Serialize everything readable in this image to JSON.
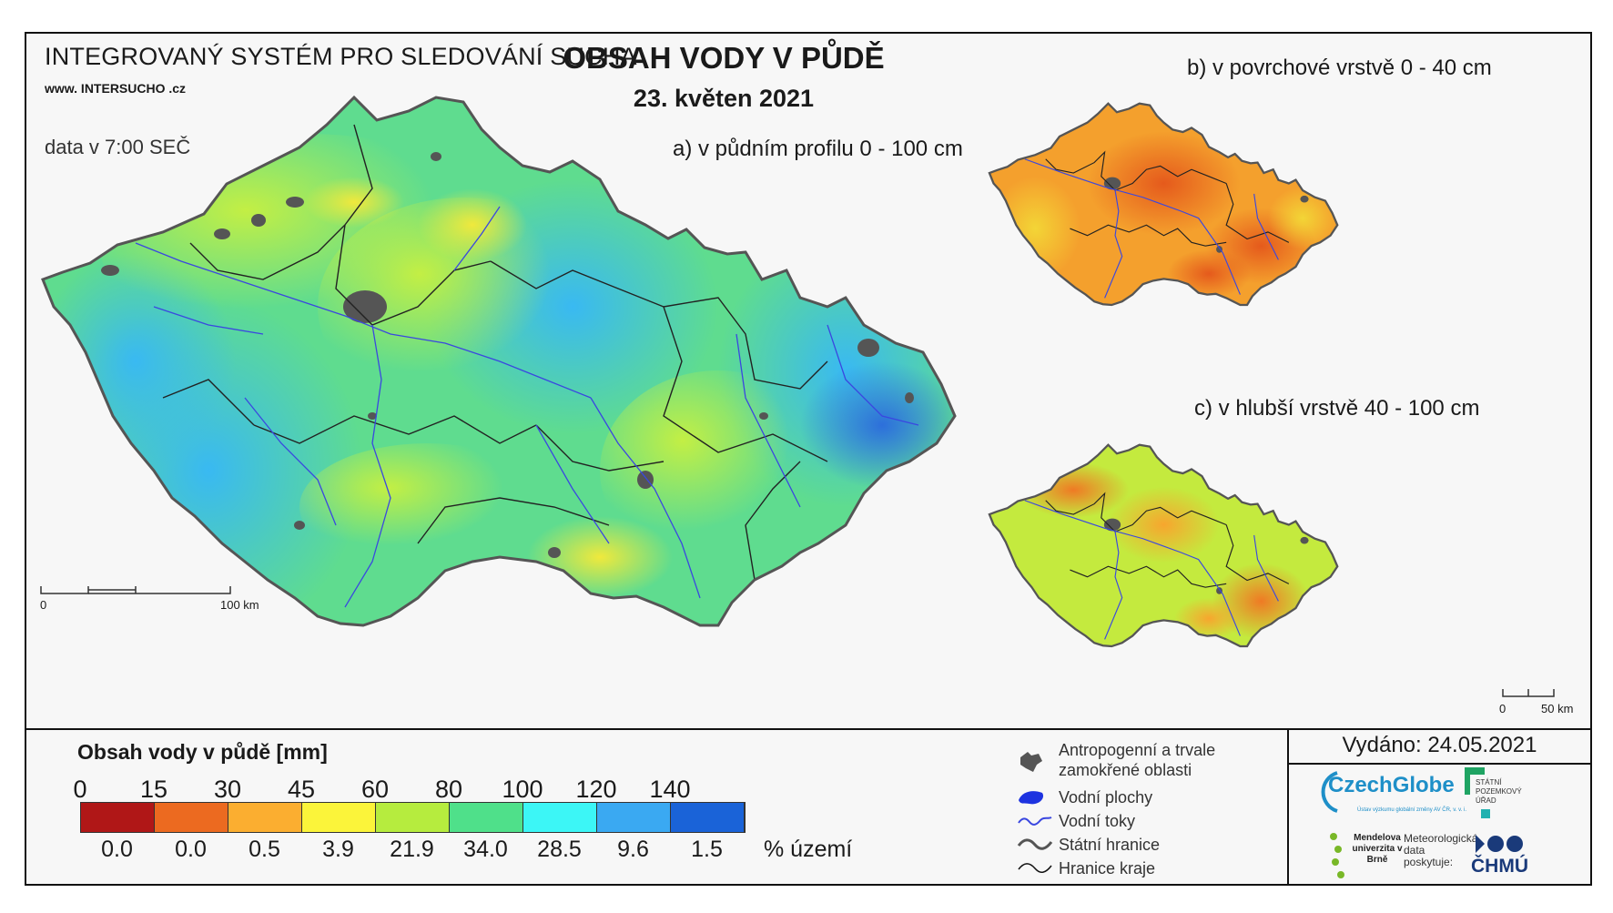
{
  "header": {
    "system_title": "INTEGROVANÝ SYSTÉM PRO SLEDOVÁNÍ SUCHA",
    "website": "www. INTERSUCHO .cz",
    "data_time": "data v 7:00 SEČ",
    "main_title": "OBSAH VODY V PŮDĚ",
    "date": "23. květen 2021"
  },
  "maps": {
    "a_label": "a) v půdním profilu 0 - 100 cm",
    "b_label": "b) v povrchové vrstvě 0 - 40 cm",
    "c_label": "c) v hlubší vrstvě 40 - 100 cm",
    "scale_main": {
      "zero": "0",
      "end": "100 km"
    },
    "scale_small": {
      "zero": "0",
      "end": "50 km"
    }
  },
  "legend": {
    "title": "Obsah vody v půdě  [mm]",
    "ticks": [
      "0",
      "15",
      "30",
      "45",
      "60",
      "80",
      "100",
      "120",
      "140"
    ],
    "colors": [
      "#b01717",
      "#ec6a20",
      "#fbae30",
      "#fbf43a",
      "#b6ec3e",
      "#4fe08a",
      "#3cf6f6",
      "#3aa9f2",
      "#1a63d8"
    ],
    "percentages": [
      "0.0",
      "0.0",
      "0.5",
      "3.9",
      "21.9",
      "34.0",
      "28.5",
      "9.6",
      "1.5"
    ],
    "percent_unit": "% území"
  },
  "symbols": {
    "anthropogenic": "Antropogenní a trvale zamokřené oblasti",
    "water_bodies": "Vodní plochy",
    "rivers": "Vodní toky",
    "state_border": "Státní hranice",
    "region_border": "Hranice kraje"
  },
  "issued": "Vydáno: 24.05.2021",
  "logos": {
    "czechglobe": "CzechGlobe",
    "czechglobe_sub": "Ústav výzkumu globální změny AV ČR, v. v. i.",
    "spu": "STÁTNÍ POZEMKOVÝ ÚŘAD",
    "mendelu": "Mendelova univerzita v Brně",
    "chmu_note": "Meteorologická data poskytuje:",
    "chmu": "ČHMÚ"
  },
  "icons": {
    "anthropogenic_symbol": "gray-blob-icon",
    "water_symbol": "blue-blob-icon",
    "river_symbol": "wavy-blue-line-icon",
    "state_symbol": "gray-wavy-line-icon",
    "region_symbol": "black-wavy-line-icon"
  }
}
